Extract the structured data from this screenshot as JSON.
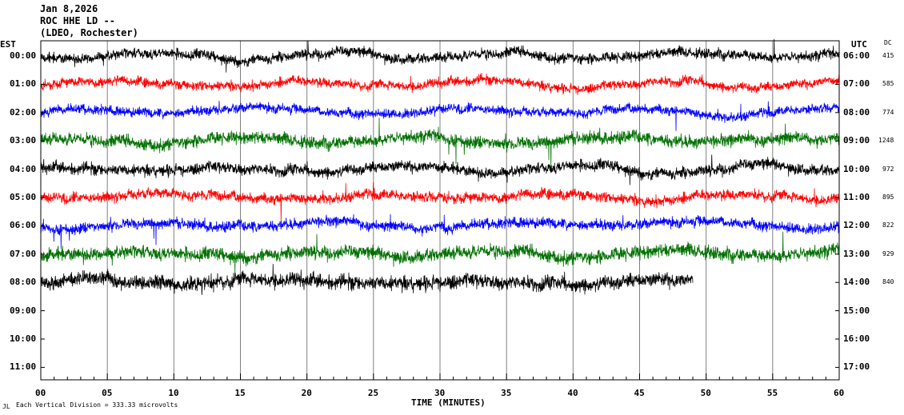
{
  "header": {
    "date": "Jan 8,2026",
    "station": "ROC HHE LD --",
    "network": "(LDEO, Rochester)"
  },
  "left_axis_label": "EST",
  "right_axis_label": "UTC",
  "dc_label": "DC",
  "scale_note": "Each Vertical Division =  333.33 microvolts",
  "corner_mark": "JL",
  "chart_data": {
    "type": "line",
    "title": "",
    "xlabel": "TIME (MINUTES)",
    "ylabel": "",
    "xlim": [
      0,
      60
    ],
    "x_ticks": [
      "00",
      "05",
      "10",
      "15",
      "20",
      "25",
      "30",
      "35",
      "40",
      "45",
      "50",
      "55",
      "60"
    ],
    "x_tick_values": [
      0,
      5,
      10,
      15,
      20,
      25,
      30,
      35,
      40,
      45,
      50,
      55,
      60
    ],
    "grid": "vertical every 5 minutes",
    "trace_colors": [
      "#000000",
      "#ff0000",
      "#0000ff",
      "#007000"
    ],
    "rows": [
      {
        "est": "00:00",
        "utc": "06:00",
        "dc": "415",
        "color": "#000000",
        "end_minute": 60,
        "amplitude": 1.0
      },
      {
        "est": "01:00",
        "utc": "07:00",
        "dc": "585",
        "color": "#ff0000",
        "end_minute": 60,
        "amplitude": 0.9
      },
      {
        "est": "02:00",
        "utc": "08:00",
        "dc": "774",
        "color": "#0000ff",
        "end_minute": 60,
        "amplitude": 0.9
      },
      {
        "est": "03:00",
        "utc": "09:00",
        "dc": "1248",
        "color": "#007000",
        "end_minute": 60,
        "amplitude": 1.2
      },
      {
        "est": "04:00",
        "utc": "10:00",
        "dc": "972",
        "color": "#000000",
        "end_minute": 60,
        "amplitude": 1.1
      },
      {
        "est": "05:00",
        "utc": "11:00",
        "dc": "895",
        "color": "#ff0000",
        "end_minute": 60,
        "amplitude": 1.0
      },
      {
        "est": "06:00",
        "utc": "12:00",
        "dc": "822",
        "color": "#0000ff",
        "end_minute": 60,
        "amplitude": 1.0
      },
      {
        "est": "07:00",
        "utc": "13:00",
        "dc": "929",
        "color": "#007000",
        "end_minute": 60,
        "amplitude": 1.3
      },
      {
        "est": "08:00",
        "utc": "14:00",
        "dc": "840",
        "color": "#000000",
        "end_minute": 49,
        "amplitude": 1.4
      },
      {
        "est": "09:00",
        "utc": "15:00",
        "dc": "",
        "color": "#000000",
        "end_minute": 0,
        "amplitude": 0
      },
      {
        "est": "10:00",
        "utc": "16:00",
        "dc": "",
        "color": "#000000",
        "end_minute": 0,
        "amplitude": 0
      },
      {
        "est": "11:00",
        "utc": "17:00",
        "dc": "",
        "color": "#000000",
        "end_minute": 0,
        "amplitude": 0
      }
    ]
  }
}
